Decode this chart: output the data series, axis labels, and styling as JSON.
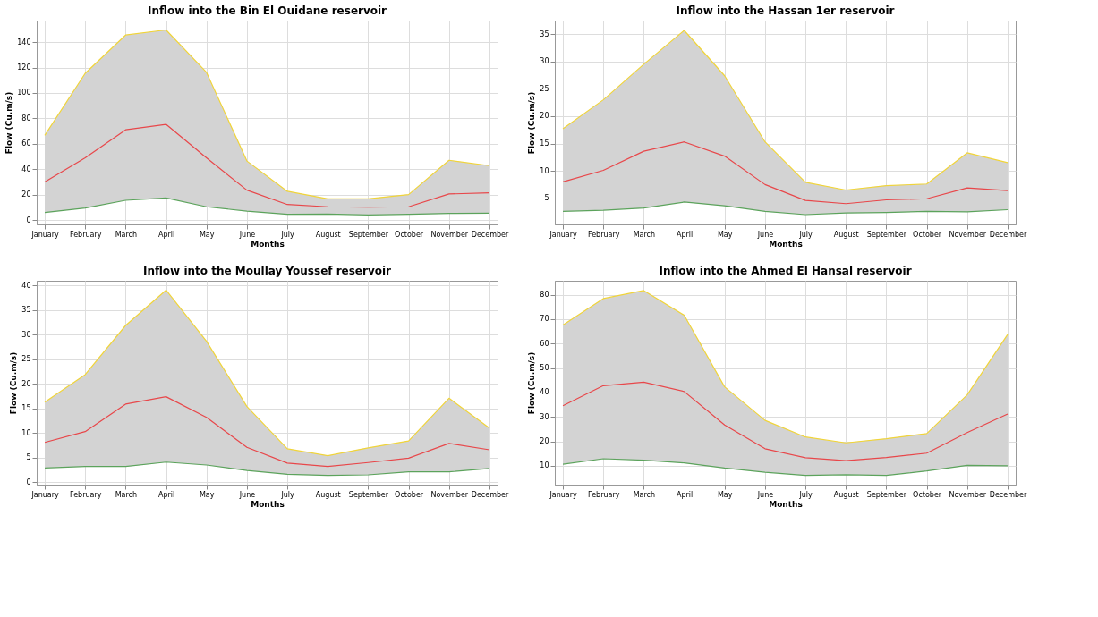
{
  "chart_data": [
    {
      "type": "line",
      "title": "Inflow into the Bin El Ouidane reservoir",
      "xlabel": "Months",
      "ylabel": "Flow (Cu.m/s)",
      "categories": [
        "January",
        "February",
        "March",
        "April",
        "May",
        "June",
        "July",
        "August",
        "September",
        "October",
        "November",
        "December"
      ],
      "ylim": [
        -3.5,
        157
      ],
      "yticks": [
        0,
        20,
        40,
        60,
        80,
        100,
        120,
        140
      ],
      "grid": true,
      "marker": "none",
      "line_style": "solid",
      "series": [
        {
          "color": "#f0d43a",
          "values": [
            66.6,
            115.5,
            145.6,
            149.6,
            116.2,
            46.4,
            22.6,
            16.7,
            16.7,
            20,
            47,
            42.8
          ]
        },
        {
          "color": "#e8474a",
          "values": [
            29.9,
            48.9,
            71,
            75.3,
            48.9,
            23.5,
            12.2,
            10.4,
            10.1,
            10.4,
            20.5,
            21.4
          ],
          "lower": [
            5.9,
            9.4,
            15.5,
            17.4,
            10.4,
            7,
            4.5,
            4.7,
            4,
            4.5,
            5.2,
            5.4
          ],
          "upper": [
            66.6,
            115.5,
            145.6,
            149.6,
            116.2,
            46.4,
            22.6,
            16.7,
            16.7,
            20,
            47,
            42.8
          ]
        },
        {
          "color": "#5ca35c",
          "values": [
            5.9,
            9.4,
            15.5,
            17.4,
            10.4,
            7,
            4.5,
            4.7,
            4,
            4.5,
            5.2,
            5.4
          ]
        }
      ]
    },
    {
      "type": "line",
      "title": "Inflow into the Hassan 1er reservoir",
      "xlabel": "Months",
      "ylabel": "Flow (Cu.m/s)",
      "categories": [
        "January",
        "February",
        "March",
        "April",
        "May",
        "June",
        "July",
        "August",
        "September",
        "October",
        "November",
        "December"
      ],
      "ylim": [
        0.2,
        37.5
      ],
      "yticks": [
        5,
        10,
        15,
        20,
        25,
        30,
        35
      ],
      "grid": true,
      "marker": "none",
      "line_style": "solid",
      "series": [
        {
          "color": "#f0d43a",
          "values": [
            17.7,
            23,
            29.5,
            35.7,
            27.4,
            15.3,
            7.9,
            6.5,
            7.3,
            7.6,
            13.3,
            11.5
          ]
        },
        {
          "color": "#e8474a",
          "values": [
            8,
            10.1,
            13.6,
            15.3,
            12.7,
            7.5,
            4.6,
            4,
            4.7,
            4.9,
            6.9,
            6.4
          ],
          "lower": [
            2.6,
            2.8,
            3.2,
            4.3,
            3.6,
            2.6,
            2,
            2.3,
            2.4,
            2.6,
            2.5,
            2.9
          ],
          "upper": [
            17.7,
            23,
            29.5,
            35.7,
            27.4,
            15.3,
            7.9,
            6.5,
            7.3,
            7.6,
            13.3,
            11.5
          ]
        },
        {
          "color": "#5ca35c",
          "values": [
            2.6,
            2.8,
            3.2,
            4.3,
            3.6,
            2.6,
            2,
            2.3,
            2.4,
            2.6,
            2.5,
            2.9
          ]
        }
      ]
    },
    {
      "type": "line",
      "title": "Inflow into the Moullay Youssef reservoir",
      "xlabel": "Months",
      "ylabel": "Flow (Cu.m/s)",
      "categories": [
        "January",
        "February",
        "March",
        "April",
        "May",
        "June",
        "July",
        "August",
        "September",
        "October",
        "November",
        "December"
      ],
      "ylim": [
        -0.5,
        41
      ],
      "yticks": [
        0,
        5,
        10,
        15,
        20,
        25,
        30,
        35,
        40
      ],
      "grid": true,
      "marker": "none",
      "line_style": "solid",
      "series": [
        {
          "color": "#f0d43a",
          "values": [
            16.3,
            21.9,
            31.9,
            39.1,
            28.7,
            15.4,
            6.8,
            5.4,
            7,
            8.4,
            17.1,
            11
          ]
        },
        {
          "color": "#e8474a",
          "values": [
            8.1,
            10.3,
            15.9,
            17.4,
            13.2,
            7.1,
            3.9,
            3.2,
            4,
            4.9,
            7.9,
            6.6
          ],
          "lower": [
            2.9,
            3.2,
            3.2,
            4.1,
            3.5,
            2.4,
            1.6,
            1.4,
            1.5,
            2.1,
            2.1,
            2.8
          ],
          "upper": [
            16.3,
            21.9,
            31.9,
            39.1,
            28.7,
            15.4,
            6.8,
            5.4,
            7,
            8.4,
            17.1,
            11
          ]
        },
        {
          "color": "#5ca35c",
          "values": [
            2.9,
            3.2,
            3.2,
            4.1,
            3.5,
            2.4,
            1.6,
            1.4,
            1.5,
            2.1,
            2.1,
            2.8
          ]
        }
      ]
    },
    {
      "type": "line",
      "title": "Inflow into the Ahmed El Hansal reservoir",
      "xlabel": "Months",
      "ylabel": "Flow (Cu.m/s)",
      "categories": [
        "January",
        "February",
        "March",
        "April",
        "May",
        "June",
        "July",
        "August",
        "September",
        "October",
        "November",
        "December"
      ],
      "ylim": [
        2.3,
        85.7
      ],
      "yticks": [
        10,
        20,
        30,
        40,
        50,
        60,
        70,
        80
      ],
      "grid": true,
      "marker": "none",
      "line_style": "solid",
      "series": [
        {
          "color": "#f0d43a",
          "values": [
            67.6,
            78.4,
            81.7,
            71.6,
            42.3,
            28.6,
            21.8,
            19.4,
            21.1,
            23.2,
            39,
            63.7
          ]
        },
        {
          "color": "#e8474a",
          "values": [
            34.6,
            42.8,
            44.2,
            40.4,
            26.7,
            17,
            13.3,
            12.1,
            13.4,
            15.2,
            23.6,
            31.2
          ],
          "lower": [
            10.7,
            12.9,
            12.3,
            11.2,
            9.1,
            7.4,
            6.1,
            6.4,
            6.1,
            7.9,
            10.2,
            10
          ],
          "upper": [
            67.6,
            78.4,
            81.7,
            71.6,
            42.3,
            28.6,
            21.8,
            19.4,
            21.1,
            23.2,
            39,
            63.7
          ]
        },
        {
          "color": "#5ca35c",
          "values": [
            10.7,
            12.9,
            12.3,
            11.2,
            9.1,
            7.4,
            6.1,
            6.4,
            6.1,
            7.9,
            10.2,
            10
          ]
        }
      ]
    }
  ]
}
